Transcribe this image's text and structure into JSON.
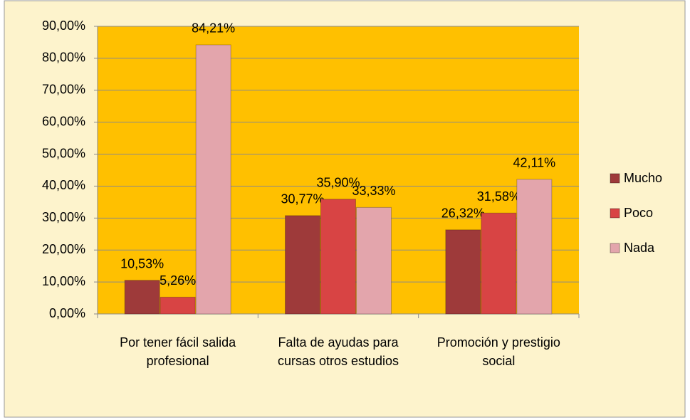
{
  "chart_data": {
    "type": "bar",
    "categories": [
      "Por tener fácil salida profesional",
      "Falta de ayudas para cursas otros estudios",
      "Promoción y prestigio social"
    ],
    "series": [
      {
        "name": "Mucho",
        "color": "#9e3a3a",
        "values": [
          10.53,
          30.77,
          26.32
        ],
        "value_labels": [
          "10,53%",
          "30,77%",
          "26,32%"
        ]
      },
      {
        "name": "Poco",
        "color": "#d84444",
        "values": [
          5.26,
          35.9,
          31.58
        ],
        "value_labels": [
          "5,26%",
          "35,90%",
          "31,58%"
        ]
      },
      {
        "name": "Nada",
        "color": "#e3a5ac",
        "values": [
          84.21,
          33.33,
          42.11
        ],
        "value_labels": [
          "84,21%",
          "33,33%",
          "42,11%"
        ]
      }
    ],
    "ylim": [
      0,
      90
    ],
    "yticks": [
      {
        "value": 0,
        "label": "0,00%"
      },
      {
        "value": 10,
        "label": "10,00%"
      },
      {
        "value": 20,
        "label": "20,00%"
      },
      {
        "value": 30,
        "label": "30,00%"
      },
      {
        "value": 40,
        "label": "40,00%"
      },
      {
        "value": 50,
        "label": "50,00%"
      },
      {
        "value": 60,
        "label": "60,00%"
      },
      {
        "value": 70,
        "label": "70,00%"
      },
      {
        "value": 80,
        "label": "80,00%"
      },
      {
        "value": 90,
        "label": "90,00%"
      }
    ],
    "grid": true,
    "legend": "right",
    "plot_color": "#ffc000"
  }
}
